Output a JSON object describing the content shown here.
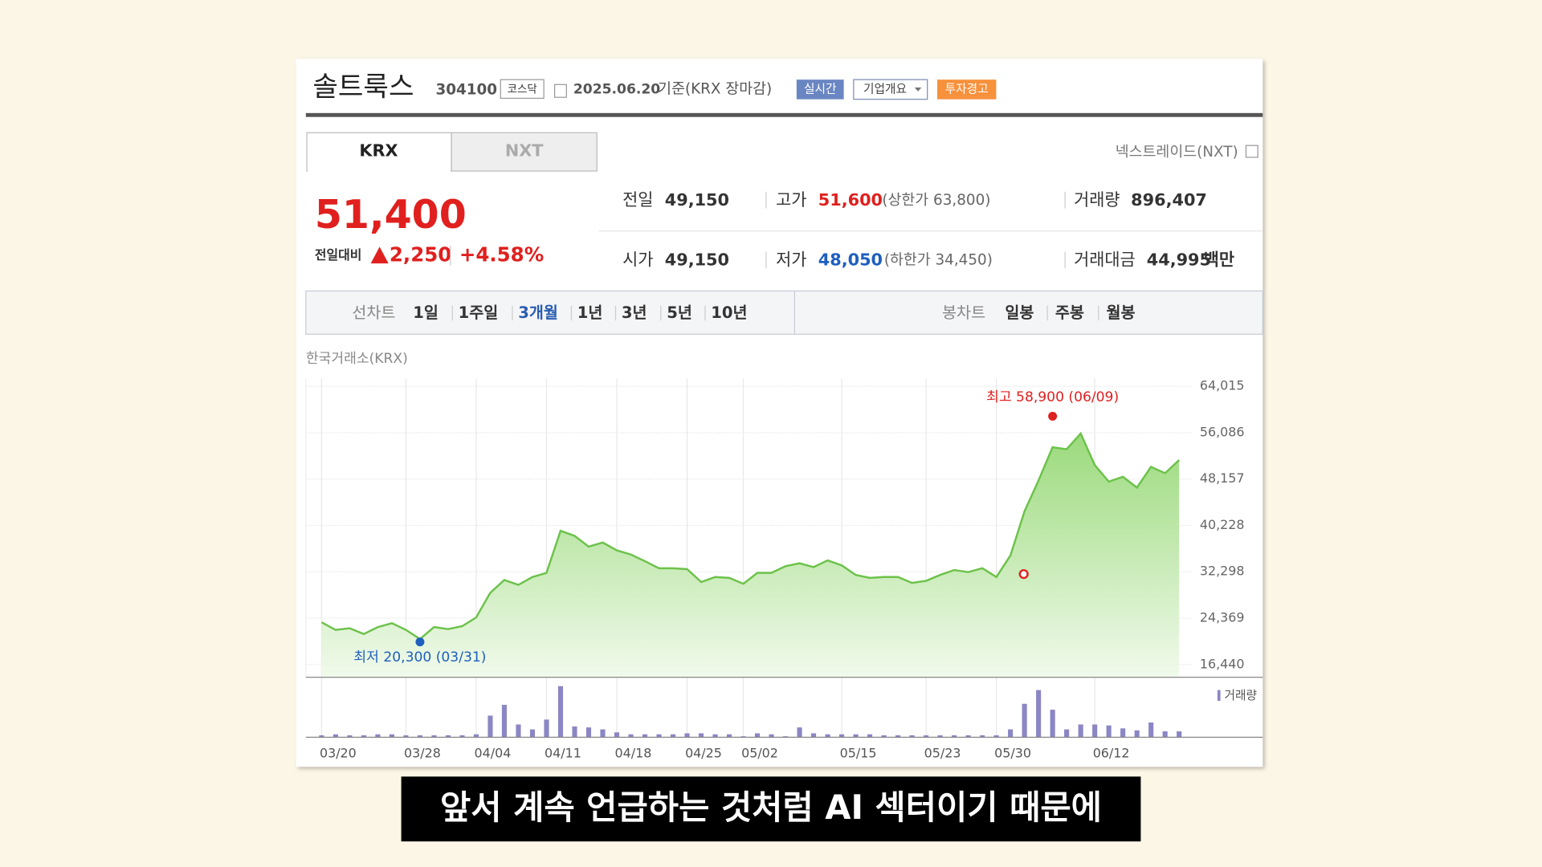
{
  "header": {
    "name": "솔트룩스",
    "code": "304100",
    "market": "코스닥",
    "date": "2025.06.20",
    "basis": "기준(KRX 장마감)",
    "buttons": [
      "실시간",
      "기업개요",
      "투자경고"
    ]
  },
  "tabs": [
    "KRX",
    "NXT"
  ],
  "nxt_link": "넥스트레이드(NXT)",
  "quote": {
    "price": "51,400",
    "change_label": "전일대비",
    "change": "2,250",
    "change_pct": "+4.58%"
  },
  "stats": [
    {
      "label": "전일",
      "value": "49,150"
    },
    {
      "label": "고가",
      "value": "51,600",
      "detail": "(상한가 63,800)"
    },
    {
      "label": "거래량",
      "value": "896,407"
    },
    {
      "label": "시가",
      "value": "49,150"
    },
    {
      "label": "저가",
      "value": "48,050",
      "detail": "(하한가 34,450)"
    },
    {
      "label": "거래대금",
      "value": "44,995",
      "unit": "백만"
    }
  ],
  "periods": {
    "line_label": "선차트",
    "line": [
      "1일",
      "1주일",
      "3개월",
      "1년",
      "3년",
      "5년",
      "10년"
    ],
    "candle_label": "봉차트",
    "candle": [
      "일봉",
      "주봉",
      "월봉"
    ]
  },
  "source": "한국거래소(KRX)",
  "subtitle": "앞서 계속 언급하는 것처럼 AI 섹터이기 때문에",
  "chart_data": {
    "type": "line",
    "categories": [
      "03/20",
      null,
      null,
      null,
      null,
      null,
      "03/28",
      null,
      null,
      null,
      null,
      "04/04",
      null,
      null,
      null,
      null,
      "04/11",
      null,
      null,
      null,
      null,
      "04/18",
      null,
      null,
      null,
      null,
      "04/25",
      null,
      null,
      null,
      "05/02",
      null,
      null,
      null,
      null,
      null,
      null,
      "05/15",
      null,
      null,
      null,
      null,
      null,
      "05/23",
      null,
      null,
      null,
      null,
      "05/30",
      null,
      null,
      null,
      null,
      null,
      null,
      "06/12",
      null,
      null,
      null,
      null,
      null,
      null
    ],
    "series": [
      {
        "color": "#6cc24a",
        "values": [
          23650,
          22350,
          22650,
          21650,
          22850,
          23500,
          22350,
          20800,
          22850,
          22500,
          23000,
          24500,
          28700,
          30900,
          30050,
          31400,
          32100,
          39300,
          38450,
          36600,
          37300,
          35950,
          35250,
          34100,
          32900,
          32900,
          32750,
          30550,
          31400,
          31250,
          30250,
          32100,
          32100,
          33250,
          33750,
          33100,
          34250,
          33400,
          31750,
          31250,
          31400,
          31400,
          30400,
          30750,
          31750,
          32600,
          32250,
          32900,
          31400,
          35100,
          42650,
          47900,
          53600,
          53250,
          55950,
          50550,
          47700,
          48550,
          46700,
          50250,
          49150,
          51400
        ]
      },
      {
        "name": "거래량",
        "color": "#8b86c4",
        "type": "bar",
        "values": [
          2,
          3,
          2,
          2,
          3,
          3,
          2,
          2,
          2,
          2,
          2,
          3,
          22,
          33,
          13,
          8,
          18,
          52,
          11,
          10,
          8,
          5,
          3,
          3,
          3,
          3,
          4,
          4,
          3,
          3,
          1,
          4,
          3,
          1,
          10,
          4,
          3,
          3,
          3,
          3,
          2,
          2,
          2,
          2,
          2,
          2,
          2,
          2,
          2,
          8,
          34,
          48,
          28,
          8,
          13,
          13,
          12,
          9,
          7,
          15,
          6,
          6
        ]
      }
    ],
    "ylim": [
      16440,
      64015
    ],
    "yticks": [
      {
        "value": 16440,
        "label": "16,440"
      },
      {
        "value": 24369,
        "label": "24,369"
      },
      {
        "value": 32298,
        "label": "32,298"
      },
      {
        "value": 40228,
        "label": "40,228"
      },
      {
        "value": 48157,
        "label": "48,157"
      },
      {
        "value": 56086,
        "label": "56,086"
      },
      {
        "value": 64015,
        "label": "64,015"
      }
    ],
    "grid": true,
    "annotations": [
      {
        "text": "최고 58,900 (06/09)",
        "value": 58900,
        "point": 52,
        "color": "#e02020"
      },
      {
        "text": "최저 20,300 (03/31)",
        "value": 20300,
        "point": 7,
        "color": "#1e5fbf"
      }
    ]
  }
}
